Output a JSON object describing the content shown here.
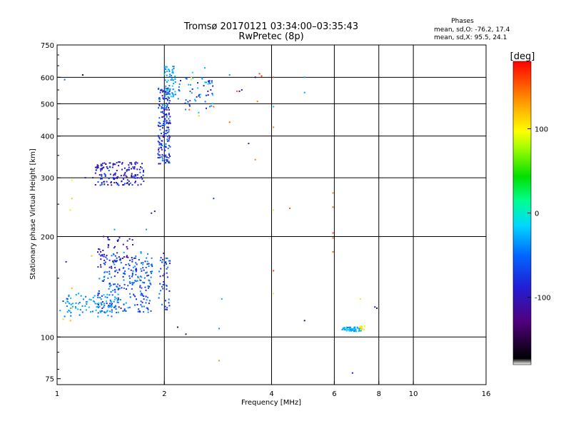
{
  "chart_data": {
    "type": "scatter",
    "title": "Tromsø 20170121 03:34:00–03:35:43",
    "subtitle": "RwPretec (8p)",
    "xlabel": "Frequency [MHz]",
    "ylabel": "Stationary phase Virtual Height [km]",
    "x_scale": "log",
    "y_scale": "log",
    "xlim": [
      1,
      16
    ],
    "ylim": [
      72,
      750
    ],
    "x_ticks": [
      1,
      2,
      4,
      6,
      8,
      10,
      16
    ],
    "x_tick_labels": [
      "1",
      "2",
      "4",
      "6",
      "8",
      "10",
      "16"
    ],
    "y_ticks": [
      75,
      100,
      200,
      300,
      400,
      500,
      600,
      750
    ],
    "y_tick_labels": [
      "75",
      "100",
      "200",
      "300",
      "400",
      "500",
      "600",
      "750"
    ],
    "grid_x": [
      2,
      4,
      6,
      8,
      10
    ],
    "grid_y": [
      100,
      200,
      300,
      400,
      500,
      600
    ],
    "stats": {
      "heading": "Phases",
      "line1": "mean, sd,O: -76.2, 17.4",
      "line2": "mean, sd,X:  95.5, 24.1"
    },
    "colorbar": {
      "label": "[deg]",
      "range": [
        -180,
        180
      ],
      "ticks": [
        100,
        0,
        -100
      ],
      "tick_labels": [
        "100",
        "0",
        "-100"
      ]
    },
    "point_groups": [
      {
        "name": "low-blob-dense",
        "n": 260,
        "x": [
          1.3,
          1.85
        ],
        "y": [
          118,
          180
        ],
        "phase": [
          -110,
          -60
        ]
      },
      {
        "name": "low-blob-cyan",
        "n": 90,
        "x": [
          1.05,
          1.5
        ],
        "y": [
          115,
          135
        ],
        "phase": [
          -80,
          -45
        ]
      },
      {
        "name": "low-blob-top",
        "n": 45,
        "x": [
          1.3,
          1.65
        ],
        "y": [
          160,
          200
        ],
        "phase": [
          -130,
          -90
        ]
      },
      {
        "name": "mid-blob",
        "n": 160,
        "x": [
          1.28,
          1.75
        ],
        "y": [
          285,
          335
        ],
        "phase": [
          -125,
          -85
        ]
      },
      {
        "name": "f-trace-column",
        "n": 190,
        "x": [
          1.92,
          2.08
        ],
        "y": [
          330,
          560
        ],
        "phase": [
          -120,
          -70
        ]
      },
      {
        "name": "f-trace-top",
        "n": 60,
        "x": [
          2.0,
          2.15
        ],
        "y": [
          520,
          650
        ],
        "phase": [
          -80,
          -40
        ]
      },
      {
        "name": "f-trace-spread",
        "n": 55,
        "x": [
          2.15,
          2.75
        ],
        "y": [
          470,
          600
        ],
        "phase": [
          -110,
          -40
        ]
      },
      {
        "name": "f-low-2mhz",
        "n": 45,
        "x": [
          1.93,
          2.08
        ],
        "y": [
          120,
          175
        ],
        "phase": [
          -110,
          -70
        ]
      },
      {
        "name": "es-trace",
        "n": 60,
        "x": [
          6.3,
          7.15
        ],
        "y": [
          104,
          107
        ],
        "phase": [
          -70,
          -40
        ]
      },
      {
        "name": "es-trace-end",
        "n": 10,
        "x": [
          7.0,
          7.35
        ],
        "y": [
          105,
          108
        ],
        "phase": [
          70,
          120
        ]
      }
    ],
    "points": [
      [
        1.02,
        120,
        -60
      ],
      [
        1.04,
        113,
        110
      ],
      [
        1.06,
        168,
        -110
      ],
      [
        1.07,
        130,
        -90
      ],
      [
        1.09,
        112,
        120
      ],
      [
        1.09,
        240,
        100
      ],
      [
        1.1,
        260,
        110
      ],
      [
        1.1,
        295,
        95
      ],
      [
        1.05,
        590,
        -75
      ],
      [
        1.18,
        610,
        -150
      ],
      [
        1.1,
        140,
        120
      ],
      [
        1.1,
        122,
        100
      ],
      [
        1.04,
        128,
        -100
      ],
      [
        1.45,
        210,
        -60
      ],
      [
        1.78,
        210,
        -60
      ],
      [
        1.72,
        178,
        -40
      ],
      [
        1.7,
        150,
        110
      ],
      [
        1.26,
        300,
        -120
      ],
      [
        1.25,
        175,
        120
      ],
      [
        1.35,
        200,
        -130
      ],
      [
        1.2,
        300,
        -110
      ],
      [
        1.84,
        235,
        -110
      ],
      [
        1.88,
        238,
        -120
      ],
      [
        1.99,
        178,
        -120
      ],
      [
        2.0,
        168,
        -60
      ],
      [
        2.18,
        107,
        -140
      ],
      [
        2.3,
        102,
        -130
      ],
      [
        2.35,
        480,
        150
      ],
      [
        2.38,
        600,
        110
      ],
      [
        2.38,
        590,
        100
      ],
      [
        2.4,
        620,
        -40
      ],
      [
        2.45,
        510,
        -60
      ],
      [
        2.5,
        460,
        110
      ],
      [
        2.6,
        640,
        -60
      ],
      [
        2.65,
        545,
        -100
      ],
      [
        2.72,
        585,
        -100
      ],
      [
        2.75,
        490,
        150
      ],
      [
        2.75,
        260,
        -90
      ],
      [
        2.85,
        85,
        130
      ],
      [
        2.85,
        106,
        -60
      ],
      [
        2.9,
        130,
        -50
      ],
      [
        3.05,
        440,
        150
      ],
      [
        3.05,
        610,
        -60
      ],
      [
        3.2,
        545,
        150
      ],
      [
        3.25,
        545,
        -130
      ],
      [
        3.3,
        550,
        -120
      ],
      [
        3.45,
        380,
        -100
      ],
      [
        3.6,
        340,
        140
      ],
      [
        3.65,
        508,
        140
      ],
      [
        3.6,
        600,
        -150
      ],
      [
        3.7,
        615,
        160
      ],
      [
        3.75,
        605,
        170
      ],
      [
        4.05,
        600,
        160
      ],
      [
        4.05,
        490,
        -50
      ],
      [
        4.05,
        425,
        140
      ],
      [
        4.05,
        240,
        80
      ],
      [
        4.05,
        135,
        80
      ],
      [
        4.05,
        158,
        160
      ],
      [
        4.5,
        243,
        150
      ],
      [
        4.95,
        600,
        -60
      ],
      [
        4.95,
        540,
        -60
      ],
      [
        4.95,
        112,
        -150
      ],
      [
        5.95,
        270,
        140
      ],
      [
        5.95,
        245,
        150
      ],
      [
        5.95,
        205,
        160
      ],
      [
        5.95,
        198,
        150
      ],
      [
        5.95,
        180,
        150
      ],
      [
        7.1,
        130,
        100
      ],
      [
        7.8,
        123,
        -120
      ],
      [
        7.9,
        122,
        -140
      ],
      [
        6.75,
        78,
        -110
      ]
    ]
  }
}
